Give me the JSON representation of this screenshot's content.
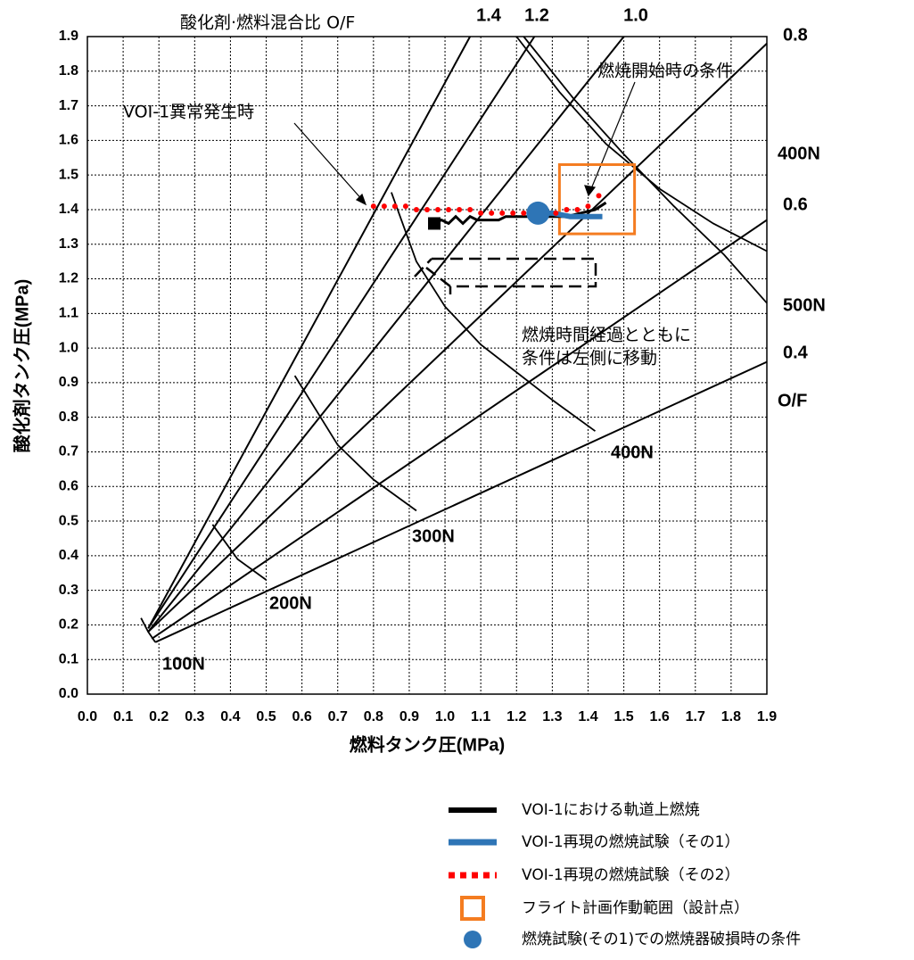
{
  "chart_data": {
    "type": "line",
    "title": "酸化剤·燃料混合比 O/F",
    "x_label": "燃料タンク圧(MPa)",
    "y_label": "酸化剤タンク圧(MPa)",
    "xlim": [
      0,
      1.9
    ],
    "ylim": [
      0,
      1.9
    ],
    "xticks": [
      {
        "value": 0,
        "label": "0.0"
      },
      0.1,
      0.2,
      0.3,
      0.4,
      0.5,
      0.6,
      0.7,
      0.8,
      0.9,
      {
        "value": 1,
        "label": "1.0"
      },
      1.1,
      1.2,
      1.3,
      1.4,
      1.5,
      1.6,
      1.7,
      1.8,
      1.9
    ],
    "yticks": [
      {
        "value": 0,
        "label": "0.0"
      },
      0.1,
      0.2,
      0.3,
      0.4,
      0.5,
      0.6,
      0.7,
      0.8,
      0.9,
      {
        "value": 1,
        "label": "1.0"
      },
      1.1,
      1.2,
      1.3,
      1.4,
      1.5,
      1.6,
      1.7,
      1.8,
      1.9
    ],
    "grid": true,
    "of_lines": [
      {
        "label": "1.4",
        "x": [
          0.17,
          1.07
        ],
        "y": [
          0.19,
          1.9
        ]
      },
      {
        "label": "1.2",
        "x": [
          0.17,
          1.25
        ],
        "y": [
          0.19,
          1.9
        ]
      },
      {
        "label": "1.0",
        "x": [
          0.17,
          1.5
        ],
        "y": [
          0.18,
          1.9
        ]
      },
      {
        "label": "0.8",
        "x": [
          0.17,
          1.9
        ],
        "y": [
          0.18,
          1.88
        ]
      },
      {
        "label": "0.6",
        "x": [
          0.18,
          1.9
        ],
        "y": [
          0.16,
          1.37
        ]
      },
      {
        "label": "0.4",
        "x": [
          0.19,
          1.9
        ],
        "y": [
          0.15,
          0.96
        ]
      }
    ],
    "of_axis_label": "O/F",
    "thrust_curves": [
      {
        "label": "100N",
        "x": [
          0.15,
          0.17,
          0.19
        ],
        "y": [
          0.22,
          0.18,
          0.15
        ]
      },
      {
        "label": "200N",
        "x": [
          0.35,
          0.42,
          0.5
        ],
        "y": [
          0.49,
          0.39,
          0.33
        ]
      },
      {
        "label": "300N",
        "x": [
          0.58,
          0.7,
          0.8,
          0.92
        ],
        "y": [
          0.92,
          0.72,
          0.62,
          0.53
        ]
      },
      {
        "label": "400N",
        "x": [
          0.85,
          0.92,
          1.0,
          1.1,
          1.2,
          1.3,
          1.42
        ],
        "y": [
          1.45,
          1.25,
          1.12,
          1.01,
          0.93,
          0.85,
          0.76
        ]
      },
      {
        "label": "400N",
        "x": [
          1.2,
          1.32,
          1.45,
          1.6,
          1.75,
          1.9
        ],
        "y": [
          1.9,
          1.74,
          1.59,
          1.46,
          1.36,
          1.28
        ]
      },
      {
        "label": "500N",
        "x": [
          1.22,
          1.36,
          1.5,
          1.64,
          1.78,
          1.9
        ],
        "y": [
          1.9,
          1.72,
          1.56,
          1.41,
          1.27,
          1.13
        ]
      }
    ],
    "series": [
      {
        "name": "VOI-1における軌道上燃焼",
        "color": "#000000",
        "x": [
          0.97,
          0.99,
          1.01,
          1.03,
          1.05,
          1.07,
          1.09,
          1.12,
          1.15,
          1.17,
          1.2,
          1.23,
          1.26,
          1.3,
          1.34,
          1.38,
          1.42,
          1.45
        ],
        "values": [
          1.36,
          1.37,
          1.36,
          1.38,
          1.36,
          1.38,
          1.37,
          1.37,
          1.37,
          1.38,
          1.38,
          1.38,
          1.38,
          1.38,
          1.38,
          1.39,
          1.4,
          1.42
        ]
      },
      {
        "name": "VOI-1再現の燃焼試験（その1）",
        "color": "#2e75b6",
        "x": [
          1.26,
          1.3,
          1.35,
          1.4,
          1.44
        ],
        "values": [
          1.39,
          1.39,
          1.38,
          1.38,
          1.38
        ]
      },
      {
        "name": "VOI-1再現の燃焼試験（その2）",
        "color": "#ff0000",
        "x": [
          0.8,
          0.83,
          0.86,
          0.89,
          0.92,
          0.95,
          0.98,
          1.01,
          1.04,
          1.07,
          1.1,
          1.13,
          1.16,
          1.19,
          1.22,
          1.25,
          1.28,
          1.31,
          1.34,
          1.37,
          1.4,
          1.43
        ],
        "values": [
          1.41,
          1.41,
          1.41,
          1.41,
          1.4,
          1.4,
          1.4,
          1.4,
          1.4,
          1.4,
          1.39,
          1.39,
          1.39,
          1.39,
          1.39,
          1.39,
          1.39,
          1.39,
          1.4,
          1.4,
          1.41,
          1.44
        ]
      }
    ],
    "design_range": {
      "name": "フライト計画作動範囲（設計点）",
      "color": "#f47c20",
      "x": [
        1.32,
        1.53
      ],
      "y": [
        1.33,
        1.53
      ]
    },
    "damage_point": {
      "name": "燃焼試験(その1)での燃焼器破損時の条件",
      "color": "#2e75b6",
      "x": 1.26,
      "y": 1.39
    },
    "annotations": [
      "VOI-1異常発生時",
      "燃焼開始時の条件",
      "燃焼時間経過とともに",
      "条件は左側に移動"
    ]
  }
}
